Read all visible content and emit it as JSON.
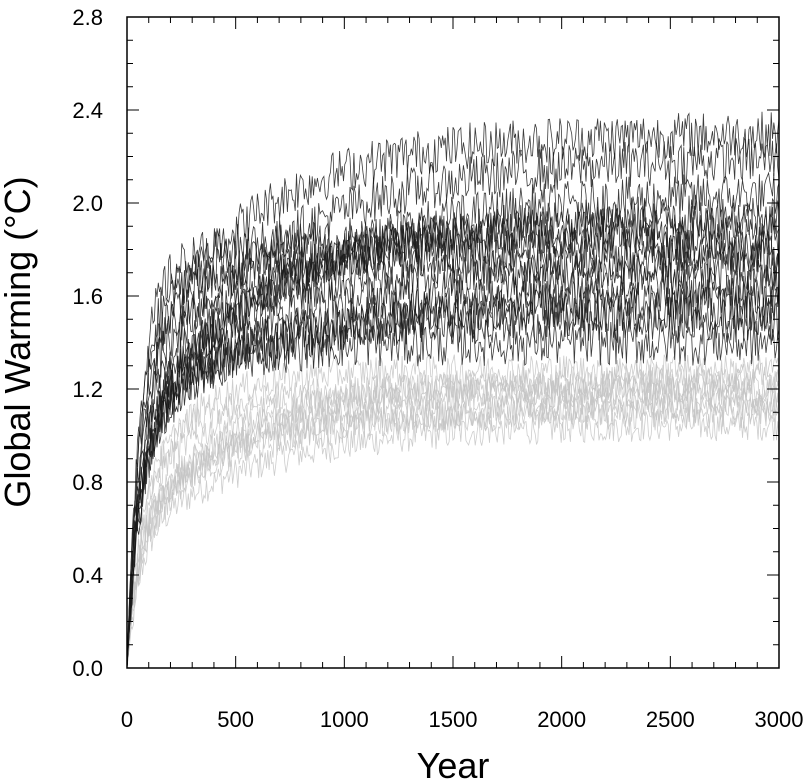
{
  "chart_data": {
    "type": "line",
    "title": "",
    "xlabel": "Year",
    "ylabel": "Global Warming (°C)",
    "xlim": [
      0,
      3000
    ],
    "ylim": [
      0.0,
      2.8
    ],
    "x_ticks": [
      0,
      500,
      1000,
      1500,
      2000,
      2500,
      3000
    ],
    "x_tick_labels": [
      "0",
      "500",
      "1000",
      "1500",
      "2000",
      "2500",
      "3000"
    ],
    "y_ticks": [
      0.0,
      0.4,
      0.8,
      1.2,
      1.6,
      2.0,
      2.4,
      2.8
    ],
    "y_tick_labels": [
      "0.0",
      "0.4",
      "0.8",
      "1.2",
      "1.6",
      "2.0",
      "2.4",
      "2.8"
    ],
    "grid": false,
    "legend": "none",
    "series_groups": [
      {
        "color": "#c4c4c4",
        "count": 9,
        "noise": 0.07,
        "final_values": [
          1.05,
          1.1,
          1.12,
          1.15,
          1.18,
          1.2,
          1.22,
          1.25,
          1.28
        ],
        "early_values": [
          0.55,
          0.6,
          0.65,
          0.7,
          0.75,
          0.8
        ]
      },
      {
        "color": "#1a1a1a",
        "count": 14,
        "noise": 0.1,
        "final_values": [
          1.4,
          1.5,
          1.55,
          1.6,
          1.65,
          1.7,
          1.75,
          1.8,
          1.85,
          1.9,
          1.95,
          2.05,
          2.2,
          2.3
        ],
        "early_values": [
          0.9,
          0.95,
          1.05,
          1.15,
          1.25,
          1.35,
          1.45,
          1.55,
          1.65
        ]
      }
    ]
  }
}
